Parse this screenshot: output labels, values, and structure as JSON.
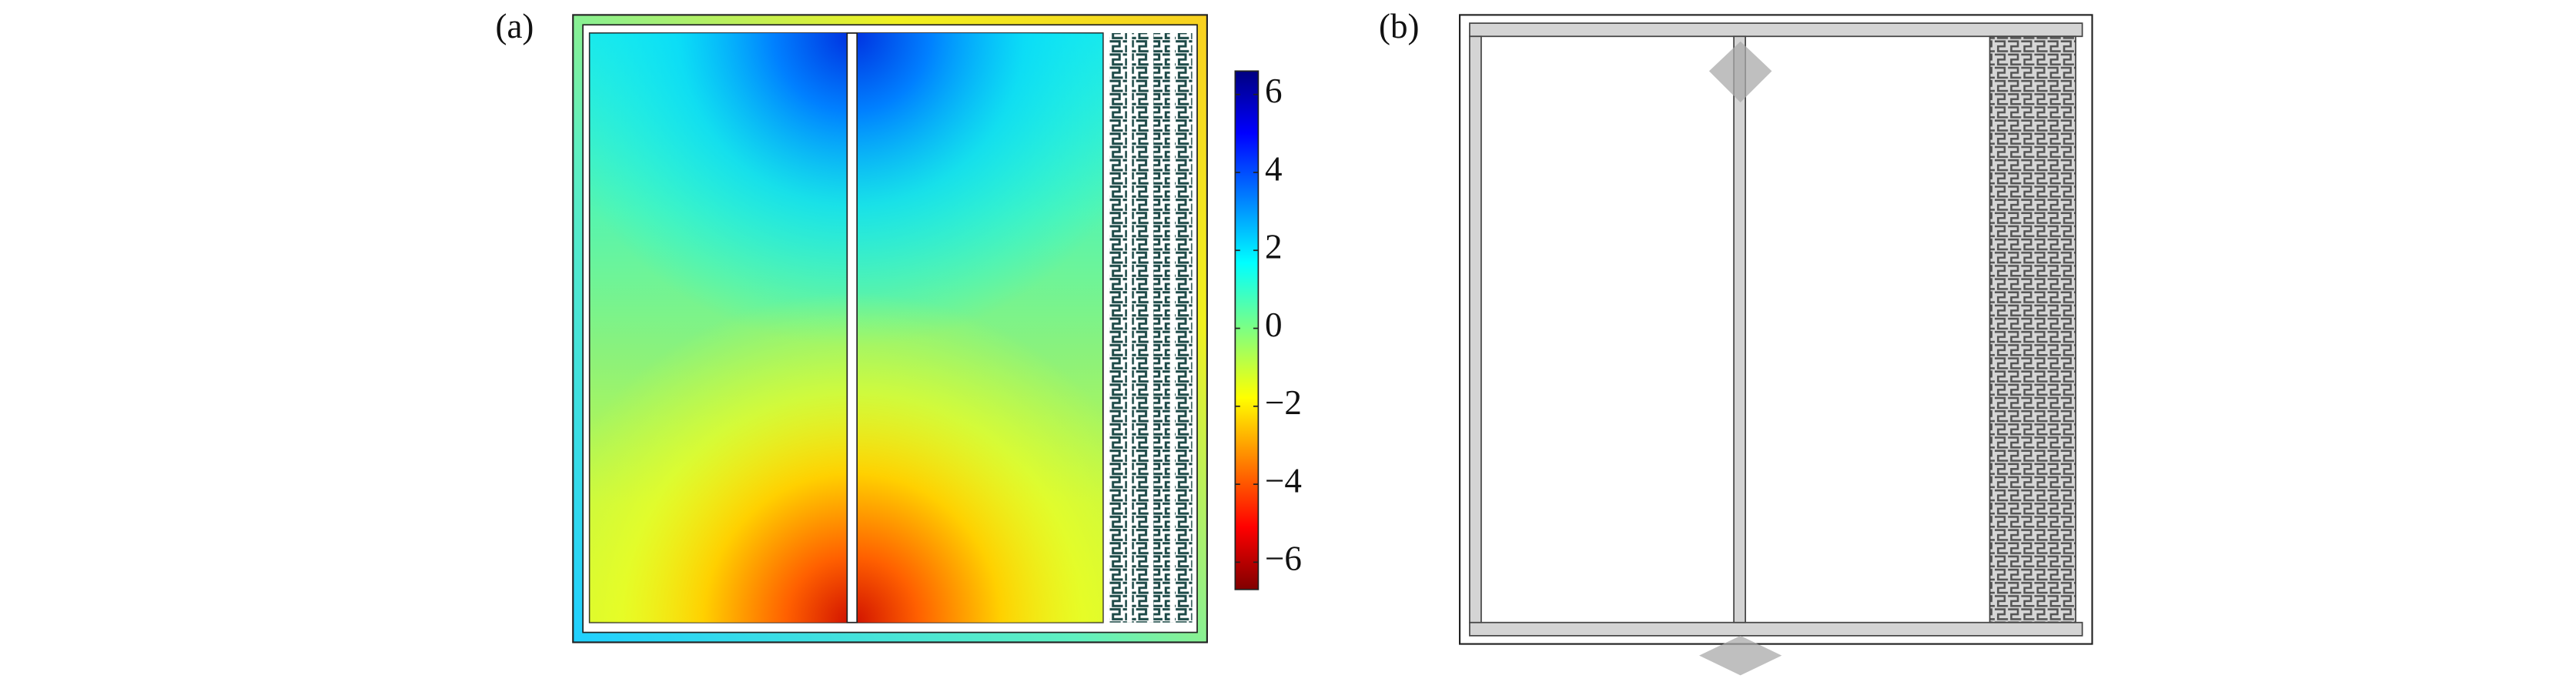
{
  "panels": [
    {
      "label": "(a)"
    },
    {
      "label": "(b)"
    }
  ],
  "colorbar": {
    "lim": [
      -6.7,
      6.6
    ],
    "ticks": [
      {
        "value": 6,
        "label": "6"
      },
      {
        "value": 4,
        "label": "4"
      },
      {
        "value": 2,
        "label": "2"
      },
      {
        "value": 0,
        "label": "0"
      },
      {
        "value": -2,
        "label": "−2"
      },
      {
        "value": -4,
        "label": "−4"
      },
      {
        "value": -6,
        "label": "−6"
      }
    ]
  }
}
